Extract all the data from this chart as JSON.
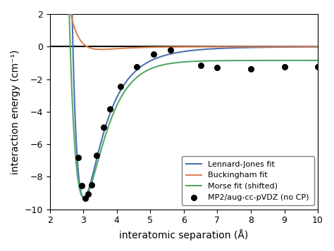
{
  "title": "",
  "xlabel": "interatomic separation (Å)",
  "ylabel": "interaction energy (cm⁻¹)",
  "xlim": [
    2,
    10
  ],
  "ylim": [
    -10,
    2
  ],
  "xticks": [
    2,
    3,
    4,
    5,
    6,
    7,
    8,
    9,
    10
  ],
  "yticks": [
    -10,
    -8,
    -6,
    -4,
    -2,
    0,
    2
  ],
  "hline_y": 0,
  "lj_color": "#4c72b0",
  "buck_color": "#dd8452",
  "morse_color": "#55a868",
  "scatter_color": "black",
  "lj_epsilon": 9.3,
  "lj_rmin": 3.02,
  "buck_A": 45000.0,
  "buck_alpha": 3.55,
  "buck_C": 650.0,
  "morse_De": 8.45,
  "morse_a": 1.75,
  "morse_re": 3.02,
  "morse_shift": -0.85,
  "scatter_x": [
    2.85,
    2.95,
    3.05,
    3.15,
    3.25,
    3.4,
    3.6,
    3.8,
    4.1,
    4.6,
    5.1,
    5.6,
    6.5,
    7.0,
    8.0,
    9.0,
    10.0
  ],
  "scatter_y": [
    -6.8,
    -8.55,
    -9.3,
    -9.05,
    -8.5,
    -6.7,
    -4.95,
    -3.85,
    -2.45,
    -1.25,
    -0.45,
    -0.22,
    -1.15,
    -1.3,
    -1.35,
    -1.25,
    -1.25
  ],
  "legend_loc": "lower right",
  "lj_label": "Lennard-Jones fit",
  "buck_label": "Buckingham fit",
  "morse_label": "Morse fit (shifted)",
  "scatter_label": "MP2/aug-cc-pVDZ (no CP)",
  "figsize": [
    4.74,
    3.57
  ],
  "dpi": 100
}
